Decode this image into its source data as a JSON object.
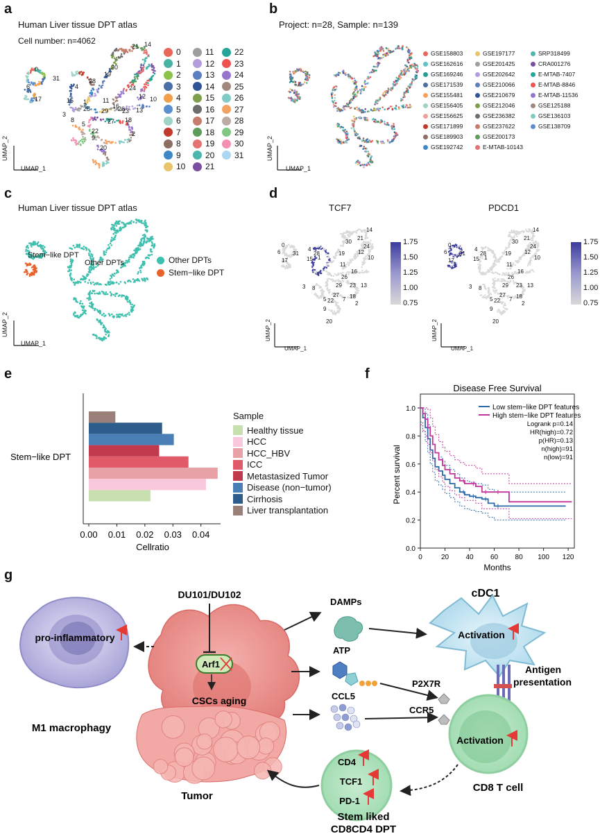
{
  "panel_labels": [
    "a",
    "b",
    "c",
    "d",
    "e",
    "f",
    "g"
  ],
  "panel_a": {
    "title": "Human Liver tissue DPT atlas",
    "subtitle": "Cell number: n=4062",
    "axis_x": "UMAP_1",
    "axis_y": "UMAP_2",
    "cluster_labels": [
      "0",
      "1",
      "2",
      "3",
      "4",
      "5",
      "6",
      "7",
      "8",
      "9",
      "10",
      "11",
      "12",
      "13",
      "14",
      "15",
      "16",
      "17",
      "18",
      "19",
      "20",
      "21",
      "22",
      "23",
      "24",
      "25",
      "26",
      "27",
      "28",
      "29",
      "30",
      "31"
    ],
    "cluster_colors": [
      "#e8665a",
      "#48b3a4",
      "#8bc34a",
      "#4a6fa5",
      "#f0a04b",
      "#5b8fd0",
      "#9fd3c7",
      "#c0392b",
      "#8d6e63",
      "#3f88c5",
      "#e9c46a",
      "#9e9e9e",
      "#b39ddb",
      "#5c7fbf",
      "#2f5597",
      "#7ea04d",
      "#6d6d6d",
      "#c77d6b",
      "#5d9c59",
      "#e57373",
      "#4db6ac",
      "#7b4fa0",
      "#26a69a",
      "#ef5350",
      "#9575cd",
      "#a1887f",
      "#80cbc4",
      "#f4a261",
      "#bcaaa4",
      "#81c784",
      "#f48fb1",
      "#aed6f1"
    ]
  },
  "panel_b": {
    "title": "Project: n=28, Sample: n=139",
    "axis_x": "UMAP_1",
    "axis_y": "UMAP_2",
    "legend": [
      {
        "label": "GSE158803",
        "color": "#e8665a"
      },
      {
        "label": "GSE162616",
        "color": "#5fc2c9"
      },
      {
        "label": "GSE169246",
        "color": "#2a9d8f"
      },
      {
        "label": "GSE171539",
        "color": "#4a6fa5"
      },
      {
        "label": "GSE155481",
        "color": "#f4a261"
      },
      {
        "label": "GSE156405",
        "color": "#9fd3c7"
      },
      {
        "label": "GSE156625",
        "color": "#e9a1a0"
      },
      {
        "label": "GSE171899",
        "color": "#c0392b"
      },
      {
        "label": "GSE189903",
        "color": "#8d6e63"
      },
      {
        "label": "GSE192742",
        "color": "#3f88c5"
      },
      {
        "label": "GSE197177",
        "color": "#e9c46a"
      },
      {
        "label": "GSE201425",
        "color": "#9e9e9e"
      },
      {
        "label": "GSE202642",
        "color": "#b39ddb"
      },
      {
        "label": "GSE210066",
        "color": "#5c7fbf"
      },
      {
        "label": "GSE210679",
        "color": "#2f5597"
      },
      {
        "label": "GSE212046",
        "color": "#7ea04d"
      },
      {
        "label": "GSE236382",
        "color": "#6d6d6d"
      },
      {
        "label": "GSE237622",
        "color": "#c77d6b"
      },
      {
        "label": "GSE200173",
        "color": "#5d9c59"
      },
      {
        "label": "E-MTAB-10143",
        "color": "#e57373"
      },
      {
        "label": "SRP318499",
        "color": "#4db6ac"
      },
      {
        "label": "CRA001276",
        "color": "#7b4fa0"
      },
      {
        "label": "E-MTAB-7407",
        "color": "#26a69a"
      },
      {
        "label": "E-MTAB-8846",
        "color": "#ef5350"
      },
      {
        "label": "E-MTAB-11536",
        "color": "#9575cd"
      },
      {
        "label": "GSE125188",
        "color": "#a1887f"
      },
      {
        "label": "GSE136103",
        "color": "#80cbc4"
      },
      {
        "label": "GSE138709",
        "color": "#5b8fd0"
      }
    ]
  },
  "panel_c": {
    "title": "Human Liver tissue DPT atlas",
    "axis_x": "UMAP_1",
    "axis_y": "UMAP_2",
    "annot_stem": "Stem−like DPT",
    "annot_other": "Other DPTs",
    "legend": [
      {
        "label": "Other DPTs",
        "color": "#3fbfad"
      },
      {
        "label": "Stem−like DPT",
        "color": "#e8622c"
      }
    ]
  },
  "panel_d": {
    "plot1_title": "TCF7",
    "plot2_title": "PDCD1",
    "axis_x": "UMAP_1",
    "axis_y": "UMAP_2",
    "scale_ticks": [
      "1.75",
      "1.50",
      "1.25",
      "1.00",
      "0.75"
    ],
    "cluster_labels": [
      "14",
      "30",
      "21",
      "24",
      "12",
      "19",
      "10",
      "1",
      "11",
      "16",
      "26",
      "29",
      "23",
      "13",
      "27",
      "5",
      "22",
      "7",
      "18",
      "2",
      "9",
      "20",
      "0",
      "6",
      "31",
      "17",
      "4",
      "28",
      "15",
      "3",
      "8"
    ],
    "colors": {
      "low": "#d9d9d9",
      "high": "#3b3b9e"
    }
  },
  "chart_data": [
    {
      "type": "bar",
      "orientation": "horizontal",
      "category": "Stem−like DPT",
      "xlabel": "Cellratio",
      "legend_title": "Sample",
      "xlim": [
        0,
        0.047
      ],
      "x_ticks": [
        "0.00",
        "0.01",
        "0.02",
        "0.03",
        "0.04"
      ],
      "series": [
        {
          "name": "Healthy tissue",
          "value": 0.023,
          "color": "#c8dfb0"
        },
        {
          "name": "HCC",
          "value": 0.042,
          "color": "#f9c8dc"
        },
        {
          "name": "HCC_HBV",
          "value": 0.046,
          "color": "#e8a1a6"
        },
        {
          "name": "ICC",
          "value": 0.036,
          "color": "#e05a6a"
        },
        {
          "name": "Metastasized Tumor",
          "value": 0.026,
          "color": "#c0394c"
        },
        {
          "name": "Disease (non−tumor)",
          "value": 0.031,
          "color": "#4a7fb5"
        },
        {
          "name": "Cirrhosis",
          "value": 0.027,
          "color": "#2e5d8c"
        },
        {
          "name": "Liver transplantation",
          "value": 0.011,
          "color": "#9b7f79"
        }
      ]
    },
    {
      "type": "line",
      "title": "Disease Free Survival",
      "xlabel": "Months",
      "ylabel": "Percent survival",
      "xlim": [
        0,
        125
      ],
      "ylim": [
        0,
        1.0
      ],
      "x_ticks": [
        "0",
        "20",
        "40",
        "60",
        "80",
        "100",
        "120"
      ],
      "y_ticks": [
        "0.0",
        "0.2",
        "0.4",
        "0.6",
        "0.8",
        "1.0"
      ],
      "stats": [
        "Logrank p=0.14",
        "HR(high)=0.72",
        "p(HR)=0.13",
        "n(high)=91",
        "n(low)=91"
      ],
      "series": [
        {
          "name": "Low stem−like DPT features",
          "color": "#2b6aa8",
          "x": [
            0,
            2,
            4,
            6,
            8,
            10,
            12,
            15,
            18,
            20,
            24,
            28,
            32,
            36,
            40,
            45,
            50,
            55,
            60,
            72,
            90,
            118
          ],
          "y": [
            1.0,
            0.93,
            0.86,
            0.78,
            0.7,
            0.64,
            0.58,
            0.55,
            0.52,
            0.49,
            0.46,
            0.43,
            0.4,
            0.38,
            0.37,
            0.36,
            0.35,
            0.32,
            0.3,
            0.3,
            0.3,
            0.3
          ]
        },
        {
          "name": "High stem−like DPT features",
          "color": "#c2339c",
          "x": [
            0,
            2,
            4,
            6,
            8,
            10,
            12,
            15,
            18,
            20,
            24,
            28,
            32,
            36,
            40,
            45,
            50,
            55,
            60,
            72,
            90,
            123
          ],
          "y": [
            1.0,
            0.96,
            0.92,
            0.86,
            0.8,
            0.74,
            0.68,
            0.63,
            0.59,
            0.56,
            0.53,
            0.5,
            0.48,
            0.46,
            0.46,
            0.44,
            0.4,
            0.4,
            0.4,
            0.33,
            0.33,
            0.33
          ]
        }
      ]
    }
  ],
  "panel_g": {
    "drug": "DU101/DU102",
    "arf1": "Arf1",
    "cscs": "CSCs aging",
    "tumor": "Tumor",
    "macro_state": "pro-inflammatory",
    "macro_name": "M1 macrophagy",
    "damps": "DAMPs",
    "atp": "ATP",
    "ccl5": "CCL5",
    "cdc1": "cDC1",
    "activation1": "Activation",
    "activation2": "Activation",
    "p2x7r": "P2X7R",
    "ccr5": "CCR5",
    "antigen": "Antigen",
    "presentation": "presentation",
    "cd8": "CD8 T cell",
    "dpt_markers": [
      "CD4",
      "TCF1",
      "PD-1"
    ],
    "dpt_name_line1": "Stem liked",
    "dpt_name_line2": "CD8CD4 DPT"
  }
}
